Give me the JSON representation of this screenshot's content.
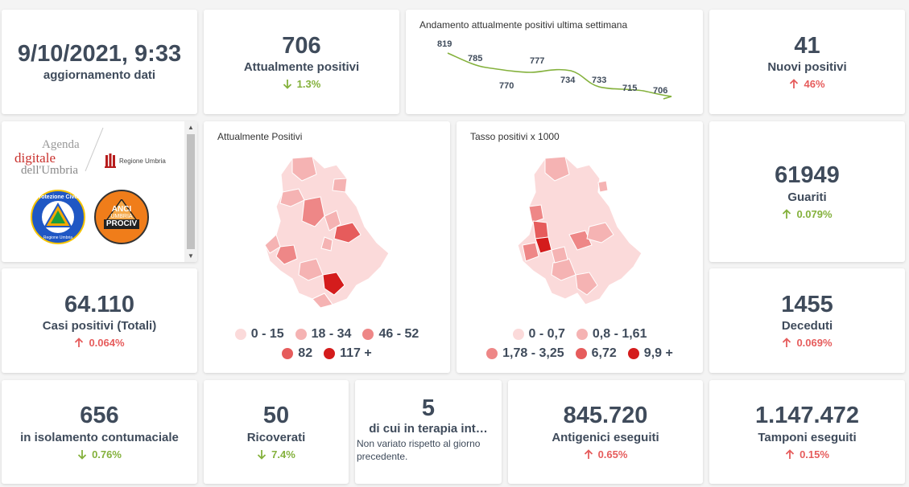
{
  "update": {
    "datetime": "9/10/2021, 9:33",
    "label": "aggiornamento dati"
  },
  "attualmente_positivi": {
    "value": "706",
    "label": "Attualmente positivi",
    "change": "1.3%",
    "direction": "down"
  },
  "trend": {
    "title": "Andamento attualmente positivi ultima settimana",
    "points": [
      "819",
      "785",
      "770",
      "777",
      "734",
      "733",
      "715",
      "706"
    ]
  },
  "nuovi_positivi": {
    "value": "41",
    "label": "Nuovi positivi",
    "change": "46%",
    "direction": "up"
  },
  "logos": {
    "agenda_line1": "Agenda",
    "agenda_line2": "digitale",
    "agenda_line3": "dell'Umbria",
    "regione": "Regione Umbria",
    "protezione": "Protezione Civile",
    "protezione_sub": "Regione Umbria",
    "anci_line1": "ANCI",
    "anci_line2": "UMBRIA",
    "anci_line3": "PROCIV"
  },
  "map1": {
    "title": "Attualmente Positivi",
    "legend": [
      {
        "label": "0 - 15",
        "color": "#fbdada"
      },
      {
        "label": "18 - 34",
        "color": "#f5b3b3"
      },
      {
        "label": "46 - 52",
        "color": "#ee8787"
      },
      {
        "label": "82",
        "color": "#e65c5c"
      },
      {
        "label": "117 +",
        "color": "#d41c1c"
      }
    ]
  },
  "map2": {
    "title": "Tasso positivi x 1000",
    "legend": [
      {
        "label": "0 - 0,7",
        "color": "#fbdada"
      },
      {
        "label": "0,8 - 1,61",
        "color": "#f5b3b3"
      },
      {
        "label": "1,78 - 3,25",
        "color": "#ee8787"
      },
      {
        "label": "6,72",
        "color": "#e65c5c"
      },
      {
        "label": "9,9 +",
        "color": "#d41c1c"
      }
    ]
  },
  "guariti": {
    "value": "61949",
    "label": "Guariti",
    "change": "0.079%",
    "direction": "up_green"
  },
  "casi_totali": {
    "value": "64.110",
    "label": "Casi positivi (Totali)",
    "change": "0.064%",
    "direction": "up"
  },
  "deceduti": {
    "value": "1455",
    "label": "Deceduti",
    "change": "0.069%",
    "direction": "up"
  },
  "isolamento": {
    "value": "656",
    "label": "in isolamento contumaciale",
    "change": "0.76%",
    "direction": "down"
  },
  "ricoverati": {
    "value": "50",
    "label": "Ricoverati",
    "change": "7.4%",
    "direction": "down"
  },
  "terapia": {
    "value": "5",
    "label": "di cui in terapia int…",
    "note": "Non variato rispetto al giorno precedente."
  },
  "antigenici": {
    "value": "845.720",
    "label": "Antigenici eseguiti",
    "change": "0.65%",
    "direction": "up"
  },
  "tamponi": {
    "value": "1.147.472",
    "label": "Tamponi eseguiti",
    "change": "0.15%",
    "direction": "up"
  }
}
